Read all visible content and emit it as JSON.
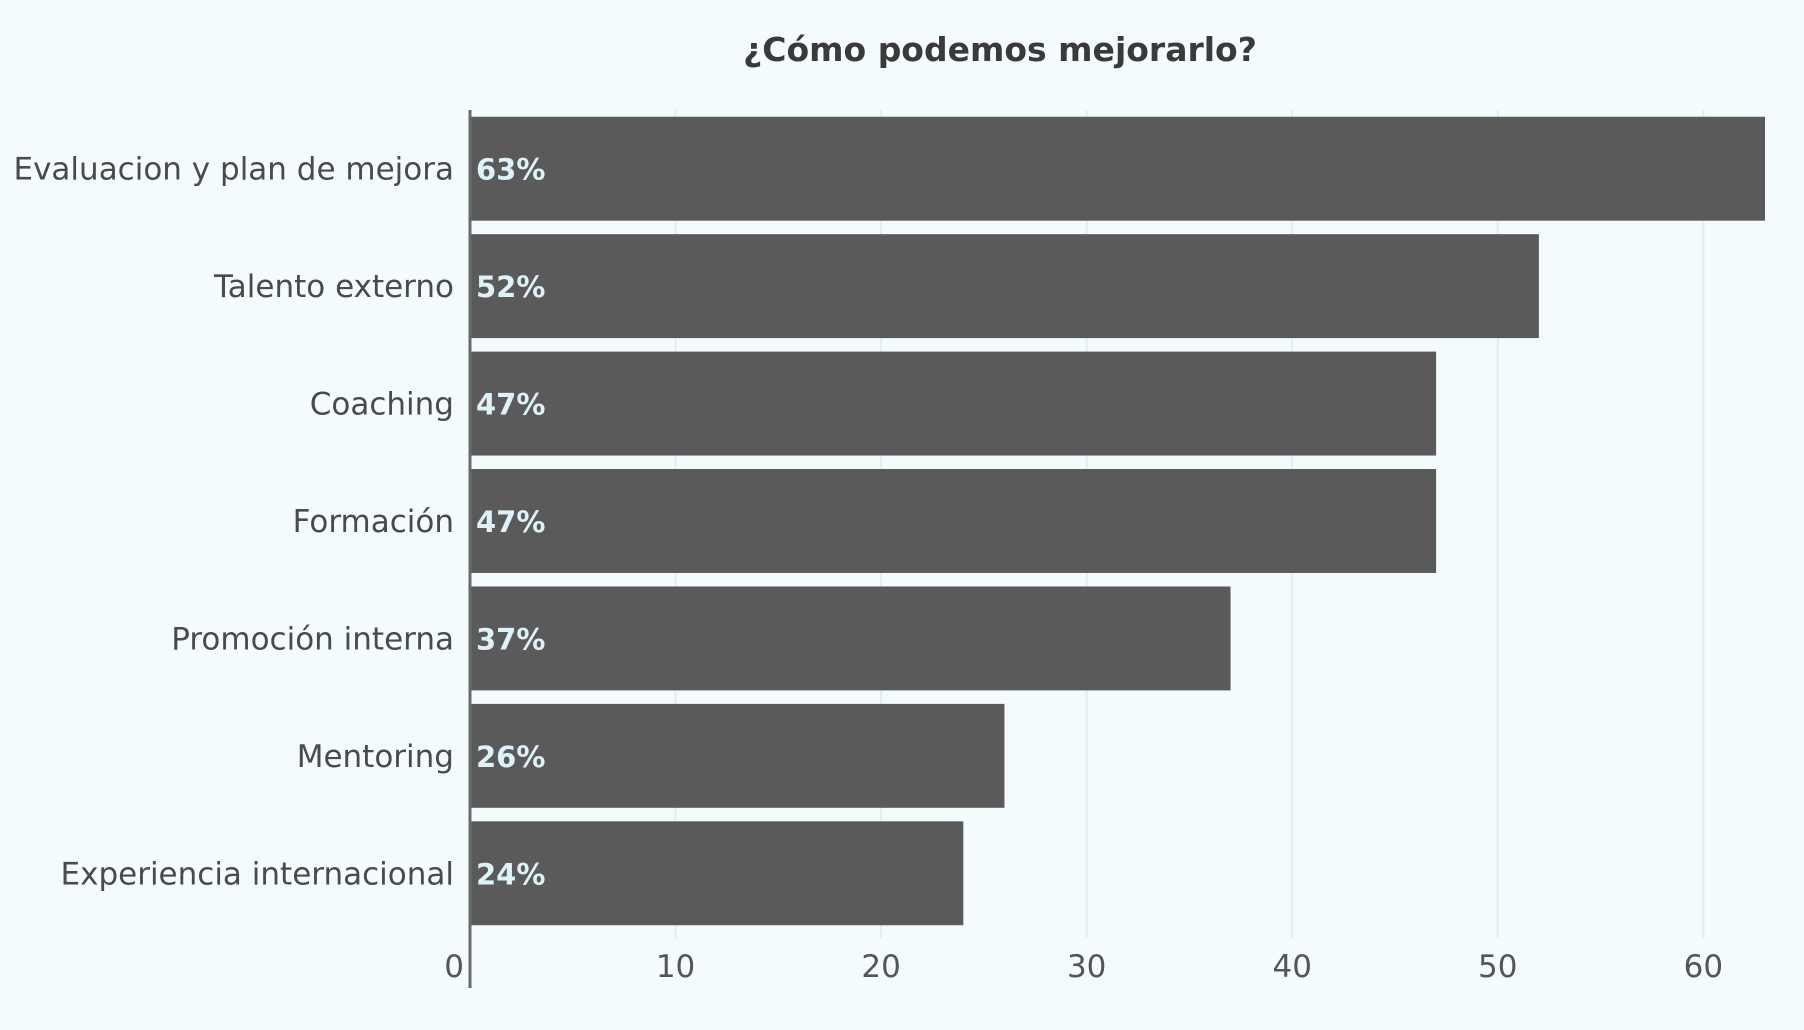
{
  "chart_data": {
    "type": "bar",
    "orientation": "horizontal",
    "title": "¿Cómo podemos mejorarlo?",
    "xlabel": "",
    "ylabel": "",
    "categories": [
      "Evaluacion y plan de mejora",
      "Talento externo",
      "Coaching",
      "Formación",
      "Promoción interna",
      "Mentoring",
      "Experiencia internacional"
    ],
    "values": [
      63,
      52,
      47,
      47,
      37,
      26,
      24
    ],
    "data_labels": [
      "63%",
      "52%",
      "47%",
      "47%",
      "37%",
      "26%",
      "24%"
    ],
    "xlim": [
      0,
      63
    ],
    "xticks": [
      0,
      10,
      20,
      30,
      40,
      50,
      60
    ],
    "grid": "vertical",
    "legend": "none",
    "colors": {
      "bar": "#5a5a5a",
      "background": "#f4fbfd",
      "grid": "#e3ecef",
      "axis": "#6a6a6a",
      "data_label": "#dff2f8"
    }
  }
}
